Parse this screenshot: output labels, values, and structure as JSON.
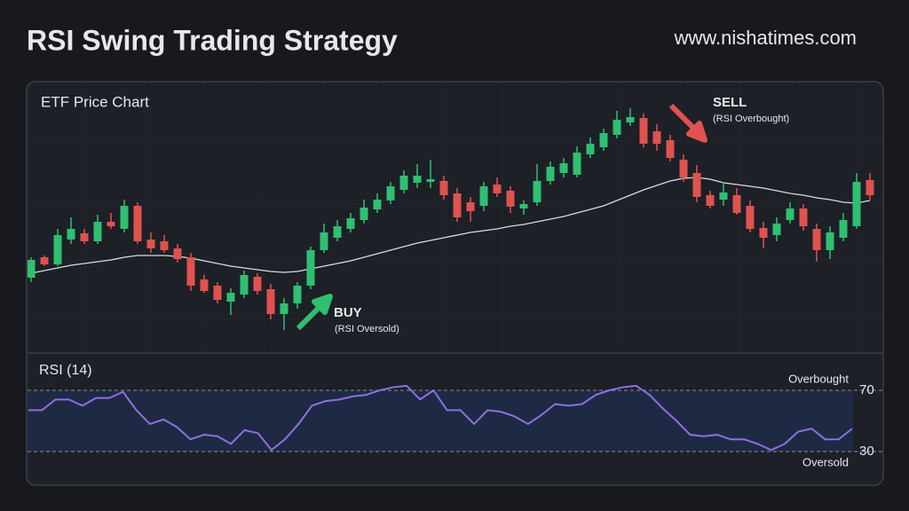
{
  "title": "RSI Swing Trading Strategy",
  "website": "www.nishatimes.com",
  "chart_data": [
    {
      "type": "candlestick",
      "title": "ETF Price Chart",
      "open": [
        82,
        105,
        97,
        125,
        132,
        123,
        145,
        137,
        163,
        125,
        123,
        115,
        105,
        80,
        73,
        55,
        63,
        83,
        69,
        41,
        53,
        73,
        113,
        127,
        137,
        147,
        159,
        169,
        181,
        189,
        190,
        191,
        177,
        167,
        163,
        187,
        180,
        160,
        167,
        191,
        200,
        198,
        221,
        229,
        243,
        257,
        262,
        247,
        237,
        215,
        200,
        175,
        170,
        175,
        163,
        138,
        130,
        147,
        160,
        137,
        113,
        127,
        140,
        192
      ],
      "high": [
        105,
        107,
        137,
        150,
        137,
        153,
        155,
        170,
        167,
        133,
        130,
        120,
        110,
        85,
        77,
        70,
        90,
        87,
        75,
        59,
        77,
        117,
        143,
        147,
        155,
        170,
        177,
        190,
        203,
        210,
        215,
        197,
        183,
        173,
        190,
        195,
        185,
        169,
        210,
        213,
        217,
        230,
        240,
        250,
        270,
        273,
        267,
        255,
        243,
        221,
        209,
        180,
        190,
        183,
        169,
        145,
        150,
        167,
        165,
        143,
        140,
        155,
        200,
        200
      ],
      "low": [
        77,
        95,
        95,
        120,
        120,
        120,
        137,
        133,
        120,
        110,
        110,
        99,
        67,
        65,
        53,
        40,
        59,
        63,
        35,
        23,
        47,
        69,
        110,
        123,
        133,
        143,
        155,
        165,
        177,
        183,
        183,
        170,
        145,
        145,
        157,
        173,
        155,
        153,
        163,
        187,
        195,
        195,
        217,
        225,
        239,
        253,
        229,
        225,
        213,
        190,
        167,
        160,
        163,
        153,
        133,
        115,
        123,
        143,
        135,
        100,
        103,
        123,
        137,
        170
      ],
      "close": [
        102,
        97,
        130,
        137,
        123,
        145,
        140,
        163,
        123,
        115,
        113,
        103,
        73,
        67,
        57,
        65,
        85,
        67,
        41,
        53,
        73,
        113,
        133,
        140,
        149,
        161,
        170,
        185,
        197,
        197,
        193,
        175,
        150,
        157,
        185,
        177,
        162,
        165,
        191,
        207,
        211,
        223,
        233,
        245,
        260,
        263,
        233,
        233,
        217,
        195,
        173,
        163,
        178,
        155,
        137,
        127,
        143,
        160,
        140,
        113,
        133,
        147,
        190,
        175
      ],
      "moving_average": [
        87,
        90,
        93,
        96,
        98,
        100,
        102,
        105,
        107,
        107,
        107,
        106,
        104,
        101,
        98,
        95,
        93,
        91,
        89,
        88,
        89,
        92,
        95,
        98,
        101,
        105,
        109,
        113,
        117,
        121,
        124,
        127,
        130,
        133,
        135,
        137,
        140,
        142,
        145,
        148,
        151,
        155,
        159,
        163,
        169,
        175,
        181,
        186,
        191,
        194,
        195,
        193,
        189,
        187,
        185,
        183,
        180,
        177,
        175,
        172,
        170,
        167,
        166,
        169
      ],
      "ylim": [
        0,
        300
      ],
      "up_color": "#2fbf71",
      "down_color": "#e0524f",
      "ma_color": "#d9dbe0",
      "annotations": [
        {
          "label": "BUY",
          "sublabel": "(RSI Oversold)",
          "color": "#2fbf71"
        },
        {
          "label": "SELL",
          "sublabel": "(RSI Overbought)",
          "color": "#e0524f"
        }
      ]
    },
    {
      "type": "line",
      "title": "RSI (14)",
      "values": [
        57,
        57,
        64,
        64,
        60,
        65,
        65,
        69,
        57,
        48,
        51,
        46,
        38,
        41,
        40,
        35,
        44,
        42,
        31,
        38,
        48,
        60,
        63,
        64,
        66,
        67,
        70,
        72,
        73,
        64,
        70,
        57,
        57,
        48,
        57,
        56,
        53,
        48,
        54,
        61,
        60,
        61,
        67,
        70,
        72,
        73,
        67,
        58,
        50,
        41,
        40,
        41,
        38,
        38,
        35,
        31,
        35,
        43,
        45,
        38,
        38,
        45
      ],
      "color": "#8f6fe0",
      "ylim": [
        10,
        90
      ],
      "yticks": [
        30,
        70
      ],
      "upper_label": "Overbought",
      "lower_label": "Oversold"
    }
  ]
}
